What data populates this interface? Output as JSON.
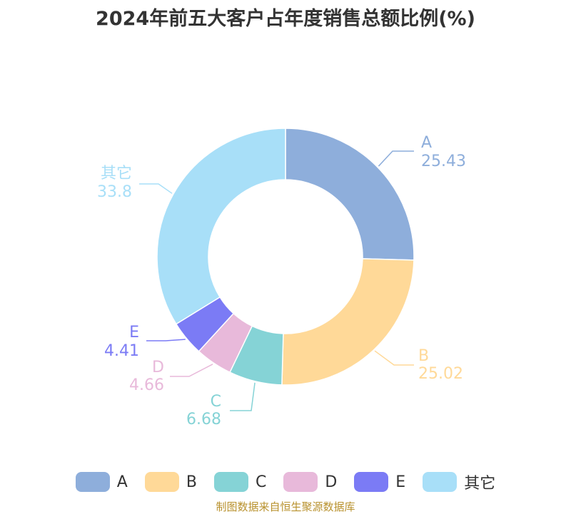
{
  "title": "2024年前五大客户占年度销售总额比例(%)",
  "source": "制图数据来自恒生聚源数据库",
  "chart_data": {
    "type": "pie",
    "donut": true,
    "title": "2024年前五大客户占年度销售总额比例(%)",
    "categories": [
      "A",
      "B",
      "C",
      "D",
      "E",
      "其它"
    ],
    "values": [
      25.43,
      25.02,
      6.68,
      4.66,
      4.41,
      33.8
    ],
    "value_labels": [
      "25.43",
      "25.02",
      "6.68",
      "4.66",
      "4.41",
      "33.8"
    ],
    "colors": [
      "#8eaedb",
      "#ffd998",
      "#85d3d6",
      "#e8b9da",
      "#7b7bf5",
      "#a8dff8"
    ],
    "legend_position": "bottom"
  }
}
